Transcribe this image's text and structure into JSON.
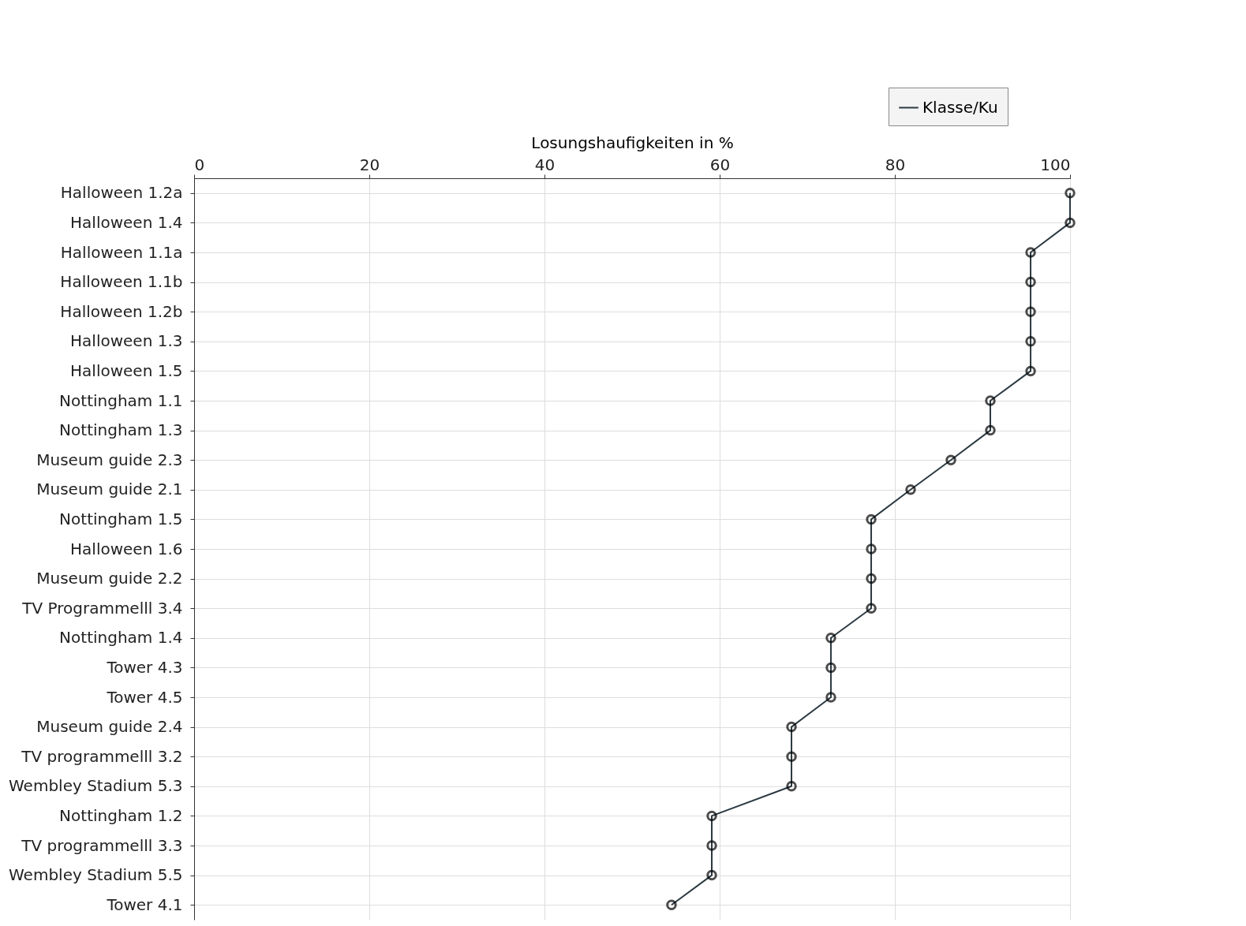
{
  "chart_data": {
    "type": "line",
    "orientation": "horizontal",
    "xlabel": "Losungshaufigkeiten in %",
    "categories": [
      "Halloween 1.2a",
      "Halloween 1.4",
      "Halloween 1.1a",
      "Halloween 1.1b",
      "Halloween 1.2b",
      "Halloween 1.3",
      "Halloween 1.5",
      "Nottingham 1.1",
      "Nottingham 1.3",
      "Museum guide 2.3",
      "Museum guide 2.1",
      "Nottingham 1.5",
      "Halloween 1.6",
      "Museum guide 2.2",
      "TV Programmelll 3.4",
      "Nottingham 1.4",
      "Tower 4.3",
      "Tower 4.5",
      "Museum guide 2.4",
      "TV programmelll 3.2",
      "Wembley Stadium 5.3",
      "Nottingham 1.2",
      "TV programmelll 3.3",
      "Wembley Stadium 5.5",
      "Tower 4.1"
    ],
    "series": [
      {
        "name": "Klasse/Ku",
        "color": "#2b3a42",
        "values": [
          100,
          100,
          95.5,
          95.5,
          95.5,
          95.5,
          95.5,
          90.9,
          90.9,
          86.4,
          81.8,
          77.3,
          77.3,
          77.3,
          77.3,
          72.7,
          72.7,
          72.7,
          68.2,
          68.2,
          68.2,
          59.1,
          59.1,
          59.1,
          54.5
        ]
      }
    ],
    "xlim": [
      0,
      100
    ],
    "xticks": [
      0,
      20,
      40,
      60,
      80,
      100
    ],
    "grid": true,
    "legend": "top right",
    "marker": "circle",
    "line_style": "solid"
  }
}
